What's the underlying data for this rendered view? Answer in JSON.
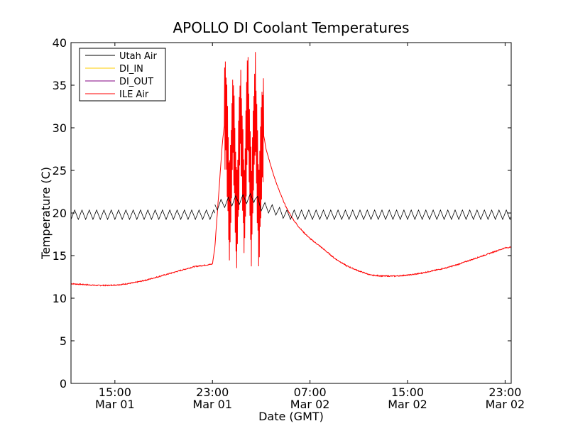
{
  "chart_data": {
    "type": "line",
    "title": "APOLLO DI Coolant Temperatures",
    "xlabel": "Date (GMT)",
    "ylabel": "Temperature (C)",
    "xlim_hours": [
      11.4,
      47.5
    ],
    "ylim": [
      0,
      40
    ],
    "yticks": [
      0,
      5,
      10,
      15,
      20,
      25,
      30,
      35,
      40
    ],
    "xticks": [
      {
        "h": 15,
        "time": "15:00",
        "date": "Mar 01"
      },
      {
        "h": 23,
        "time": "23:00",
        "date": "Mar 01"
      },
      {
        "h": 31,
        "time": "07:00",
        "date": "Mar 02"
      },
      {
        "h": 39,
        "time": "15:00",
        "date": "Mar 02"
      },
      {
        "h": 47,
        "time": "23:00",
        "date": "Mar 02"
      }
    ],
    "legend_position": "top-left",
    "series": [
      {
        "name": "Utah Air",
        "color": "#000000",
        "pattern": "sawtooth",
        "osc_period_h": 0.6,
        "osc_amplitude": 0.55,
        "segments": [
          {
            "x": [
              11.4,
              23.2
            ],
            "y": [
              19.8,
              19.8
            ]
          },
          {
            "x": [
              23.2,
              24.0,
              25.0,
              26.5,
              27.0,
              28.2,
              29.0,
              47.5
            ],
            "y": [
              20.8,
              21.2,
              21.5,
              21.8,
              20.8,
              20.3,
              19.8,
              19.8
            ]
          }
        ]
      },
      {
        "name": "DI_IN",
        "color": "#ffcc00",
        "segments": []
      },
      {
        "name": "DI_OUT",
        "color": "#800080",
        "segments": []
      },
      {
        "name": "ILE Air",
        "color": "#ff0000",
        "x": [
          11.4,
          12.5,
          13.5,
          14.5,
          15.5,
          16.5,
          17.5,
          18.5,
          19.5,
          20.5,
          21.5,
          22.5,
          23.0,
          23.2,
          23.5,
          23.8,
          24.1,
          24.4,
          24.7,
          25.0,
          25.3,
          25.6,
          25.9,
          26.2,
          26.5,
          26.8,
          27.1,
          27.4,
          27.7,
          28.0,
          28.5,
          29.0,
          29.5,
          30.0,
          30.5,
          31.0,
          32.0,
          33.0,
          34.0,
          35.0,
          36.0,
          37.0,
          38.0,
          39.0,
          40.0,
          41.0,
          42.0,
          43.0,
          44.0,
          45.0,
          46.0,
          47.0,
          47.5
        ],
        "y": [
          11.7,
          11.6,
          11.5,
          11.5,
          11.6,
          11.8,
          12.1,
          12.5,
          12.9,
          13.3,
          13.7,
          13.9,
          14.0,
          16.0,
          22.0,
          28.0,
          32.0,
          20.0,
          32.0,
          18.0,
          33.0,
          20.0,
          33.5,
          19.5,
          33.5,
          19.0,
          30.0,
          27.5,
          26.0,
          24.5,
          22.5,
          20.8,
          19.5,
          18.5,
          17.7,
          17.0,
          15.9,
          14.7,
          13.8,
          13.2,
          12.7,
          12.6,
          12.6,
          12.7,
          12.9,
          13.2,
          13.5,
          13.9,
          14.4,
          14.9,
          15.4,
          15.9,
          16.0
        ],
        "noise_range_h": [
          24.0,
          27.2
        ],
        "noise_swing": 6.5
      }
    ]
  }
}
